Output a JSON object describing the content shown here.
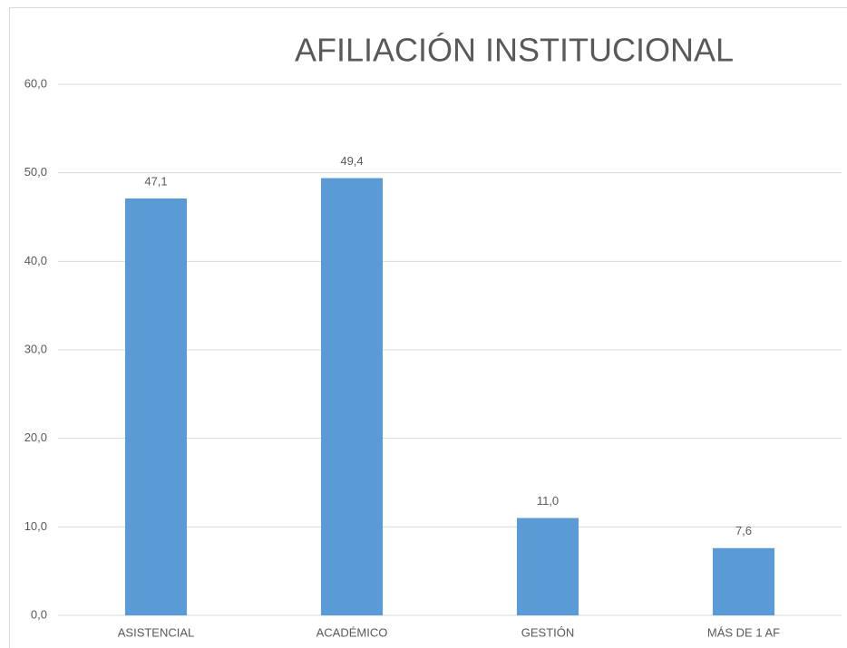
{
  "chart_data": {
    "type": "bar",
    "title": "AFILIACIÓN INSTITUCIONAL",
    "categories": [
      "ASISTENCIAL",
      "ACADÉMICO",
      "GESTIÓN",
      "MÁS DE 1 AF"
    ],
    "values": [
      47.1,
      49.4,
      11.0,
      7.6
    ],
    "value_labels": [
      "47,1",
      "49,4",
      "11,0",
      "7,6"
    ],
    "color": "#5b9bd5",
    "ylim": [
      0,
      60
    ],
    "yticks": [
      {
        "value": 0,
        "label": "0,0"
      },
      {
        "value": 10,
        "label": "10,0"
      },
      {
        "value": 20,
        "label": "20,0"
      },
      {
        "value": 30,
        "label": "30,0"
      },
      {
        "value": 40,
        "label": "40,0"
      },
      {
        "value": 50,
        "label": "50,0"
      },
      {
        "value": 60,
        "label": "60,0"
      }
    ],
    "grid": true
  }
}
